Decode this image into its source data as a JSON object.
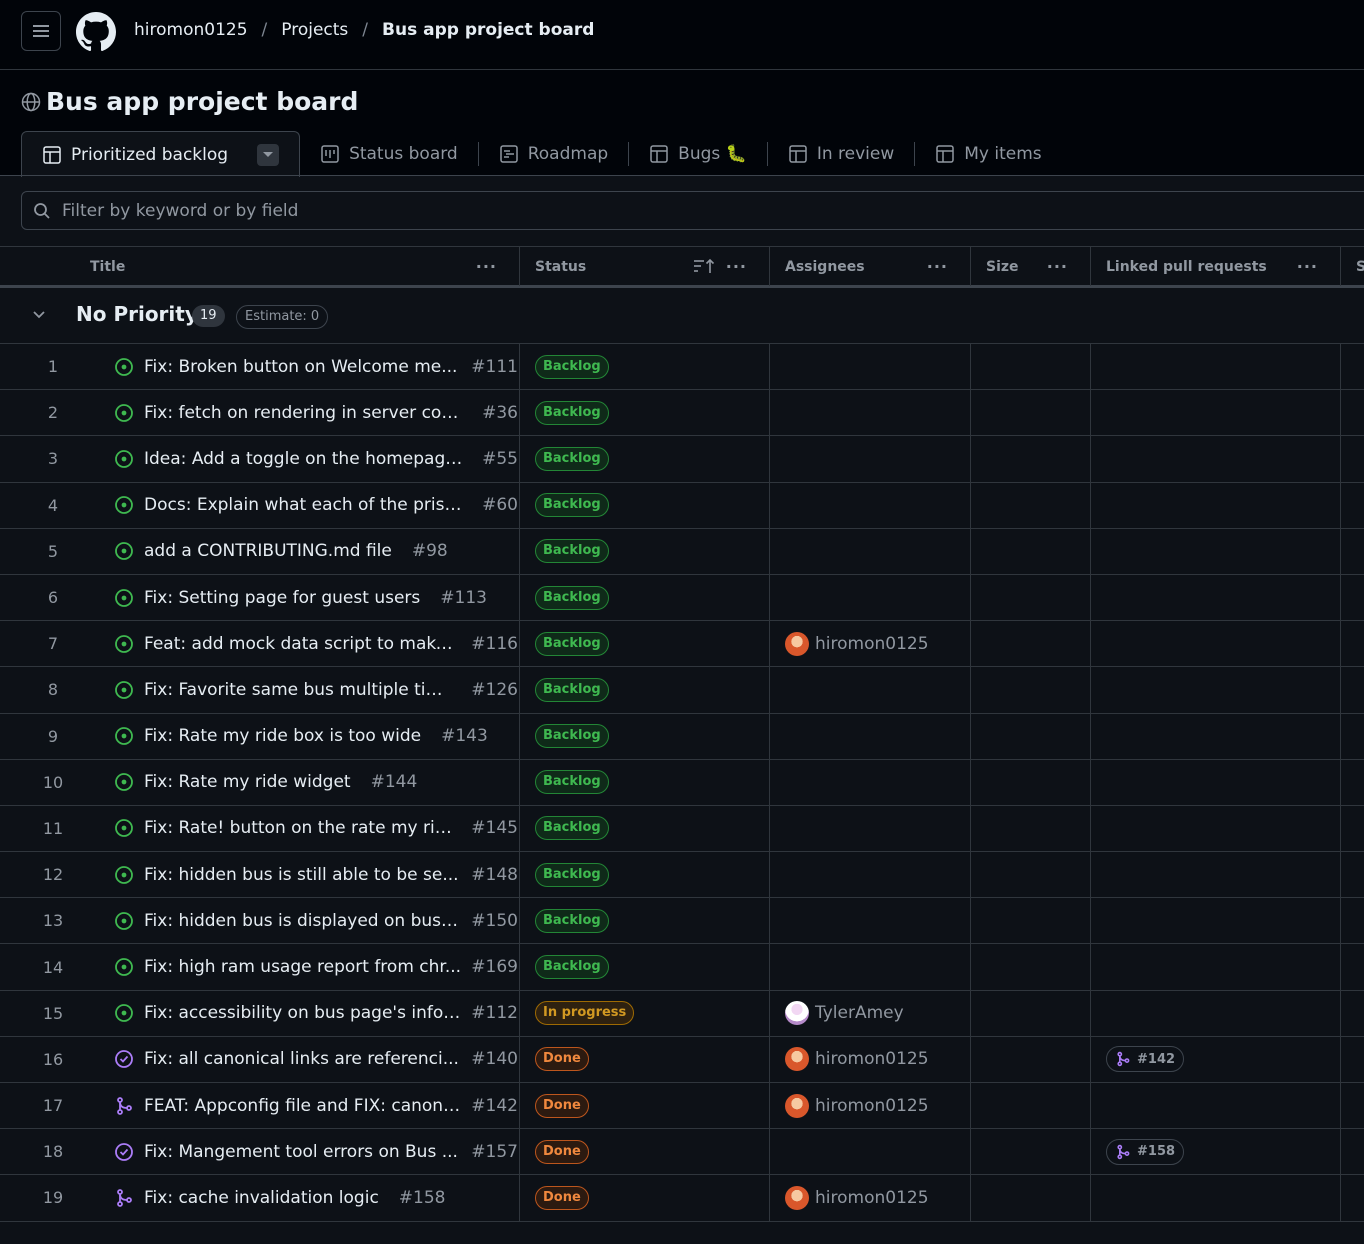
{
  "breadcrumb": {
    "owner": "hiromon0125",
    "section": "Projects",
    "current": "Bus app project board"
  },
  "project": {
    "title": "Bus app project board"
  },
  "views": [
    {
      "label": "Prioritized backlog",
      "icon": "table-icon",
      "active": true
    },
    {
      "label": "Status board",
      "icon": "board-icon"
    },
    {
      "label": "Roadmap",
      "icon": "roadmap-icon"
    },
    {
      "label": "Bugs 🐛",
      "icon": "table-icon"
    },
    {
      "label": "In review",
      "icon": "table-icon"
    },
    {
      "label": "My items",
      "icon": "table-icon"
    }
  ],
  "filter": {
    "placeholder": "Filter by keyword or by field",
    "value": ""
  },
  "columns": [
    {
      "label": "Title"
    },
    {
      "label": "Status"
    },
    {
      "label": "Assignees"
    },
    {
      "label": "Size"
    },
    {
      "label": "Linked pull requests"
    },
    {
      "label": "S"
    }
  ],
  "group": {
    "name": "No Priority",
    "count": "19",
    "estimate": "Estimate: 0"
  },
  "rows": [
    {
      "n": "1",
      "title": "Fix: Broken button on Welcome me...",
      "num": "#111",
      "kind": "open",
      "status": "Backlog",
      "assignee": "",
      "pr": ""
    },
    {
      "n": "2",
      "title": "Fix: fetch on rendering in server com...",
      "num": "#36",
      "kind": "open",
      "status": "Backlog",
      "assignee": "",
      "pr": ""
    },
    {
      "n": "3",
      "title": "Idea: Add a toggle on the homepage...",
      "num": "#55",
      "kind": "open",
      "status": "Backlog",
      "assignee": "",
      "pr": ""
    },
    {
      "n": "4",
      "title": "Docs: Explain what each of the prism...",
      "num": "#60",
      "kind": "open",
      "status": "Backlog",
      "assignee": "",
      "pr": ""
    },
    {
      "n": "5",
      "title": "add a CONTRIBUTING.md file",
      "num": "#98",
      "kind": "open",
      "status": "Backlog",
      "assignee": "",
      "pr": ""
    },
    {
      "n": "6",
      "title": "Fix: Setting page for guest users",
      "num": "#113",
      "kind": "open",
      "status": "Backlog",
      "assignee": "",
      "pr": ""
    },
    {
      "n": "7",
      "title": "Feat: add mock data script to make ...",
      "num": "#116",
      "kind": "open",
      "status": "Backlog",
      "assignee": "hiromon0125",
      "pr": ""
    },
    {
      "n": "8",
      "title": "Fix: Favorite same bus multiple times",
      "num": "#126",
      "kind": "open",
      "status": "Backlog",
      "assignee": "",
      "pr": ""
    },
    {
      "n": "9",
      "title": "Fix: Rate my ride box is too wide",
      "num": "#143",
      "kind": "open",
      "status": "Backlog",
      "assignee": "",
      "pr": ""
    },
    {
      "n": "10",
      "title": "Fix: Rate my ride widget",
      "num": "#144",
      "kind": "open",
      "status": "Backlog",
      "assignee": "",
      "pr": ""
    },
    {
      "n": "11",
      "title": "Fix: Rate! button on the rate my rid...",
      "num": "#145",
      "kind": "open",
      "status": "Backlog",
      "assignee": "",
      "pr": ""
    },
    {
      "n": "12",
      "title": "Fix: hidden bus is still able to be se...",
      "num": "#148",
      "kind": "open",
      "status": "Backlog",
      "assignee": "",
      "pr": ""
    },
    {
      "n": "13",
      "title": "Fix: hidden bus is displayed on bus ...",
      "num": "#150",
      "kind": "open",
      "status": "Backlog",
      "assignee": "",
      "pr": ""
    },
    {
      "n": "14",
      "title": "Fix: high ram usage report from chr...",
      "num": "#169",
      "kind": "open",
      "status": "Backlog",
      "assignee": "",
      "pr": ""
    },
    {
      "n": "15",
      "title": "Fix: accessibility on bus page's info ...",
      "num": "#112",
      "kind": "open",
      "status": "In progress",
      "assignee": "TylerAmey",
      "pr": ""
    },
    {
      "n": "16",
      "title": "Fix: all canonical links are referenci...",
      "num": "#140",
      "kind": "closed",
      "status": "Done",
      "assignee": "hiromon0125",
      "pr": "#142"
    },
    {
      "n": "17",
      "title": "FEAT: Appconfig file and FIX: canoni...",
      "num": "#142",
      "kind": "merged",
      "status": "Done",
      "assignee": "hiromon0125",
      "pr": ""
    },
    {
      "n": "18",
      "title": "Fix: Mangement tool errors on Bus ...",
      "num": "#157",
      "kind": "closed",
      "status": "Done",
      "assignee": "",
      "pr": "#158"
    },
    {
      "n": "19",
      "title": "Fix: cache invalidation logic",
      "num": "#158",
      "kind": "merged",
      "status": "Done",
      "assignee": "hiromon0125",
      "pr": ""
    }
  ],
  "colors": {
    "open": "#3fb950",
    "closed_merged": "#ab7df8",
    "backlog": "#3fb950",
    "in_progress": "#d29922",
    "done": "#f0883e"
  }
}
